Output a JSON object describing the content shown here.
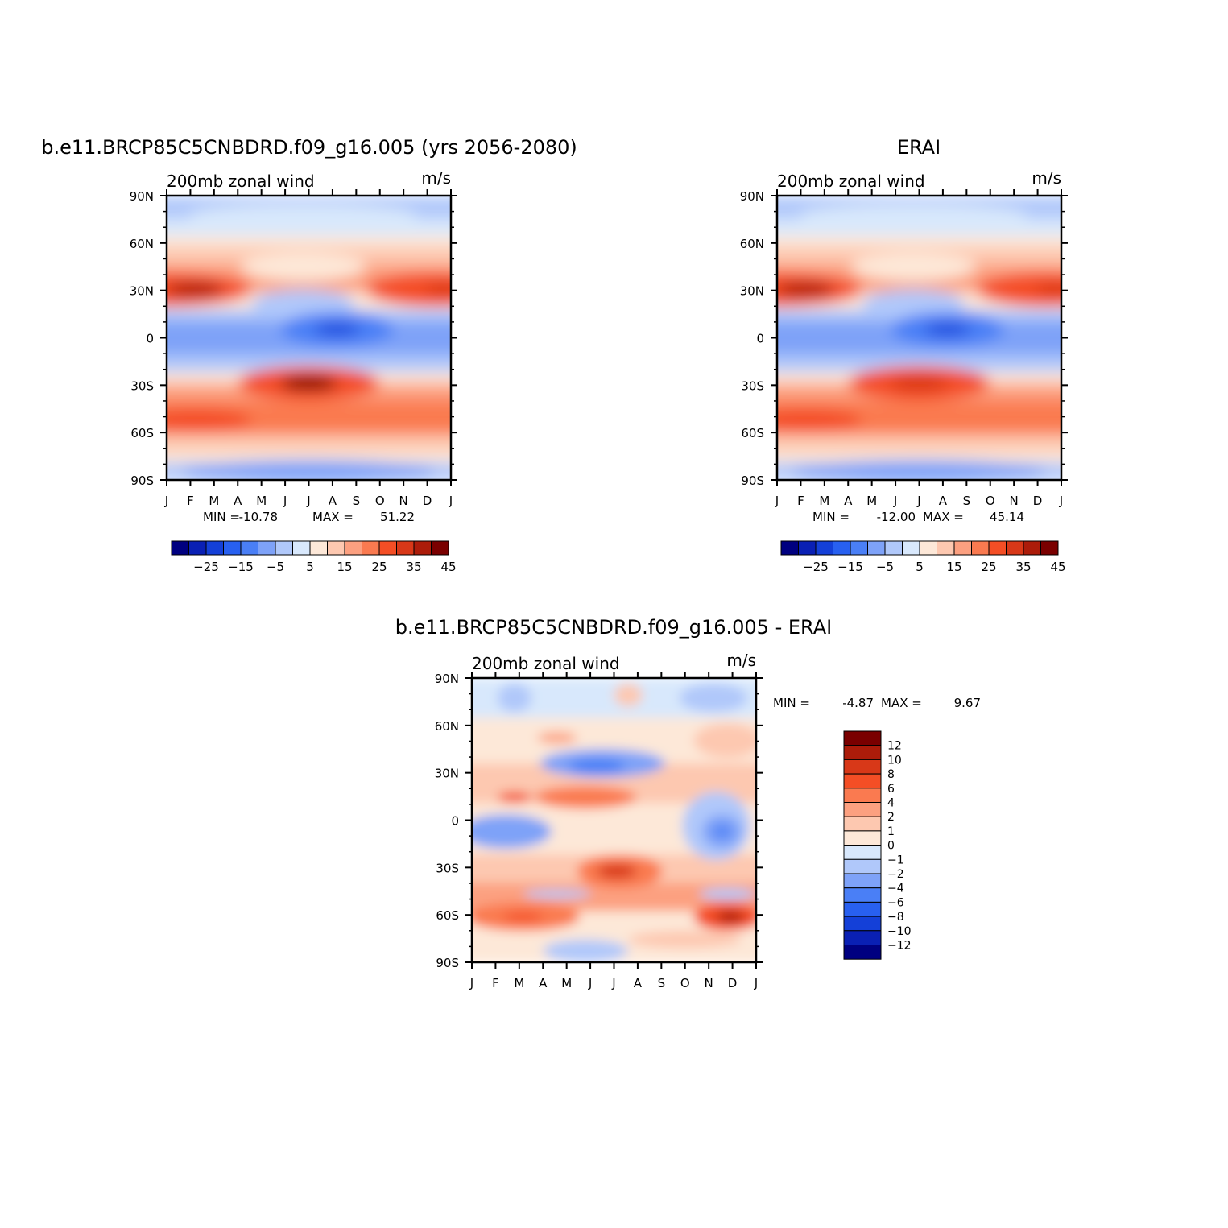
{
  "chart_data": [
    {
      "type": "heatmap",
      "title": "b.e11.BRCP85C5CNBDRD.f09_g16.005 (yrs 2056-2080)",
      "left_string": "200mb zonal wind",
      "right_string": "m/s",
      "x_ticks": [
        "J",
        "F",
        "M",
        "A",
        "M",
        "J",
        "J",
        "A",
        "S",
        "O",
        "N",
        "D",
        "J"
      ],
      "y_ticks": [
        "90N",
        "60N",
        "30N",
        "0",
        "30S",
        "60S",
        "90S"
      ],
      "min_label": "MIN =",
      "min_value": "-10.78",
      "max_label": "MAX =",
      "max_value": "51.22",
      "colorbar": {
        "orientation": "horizontal",
        "labels": [
          "-25",
          "-15",
          "-5",
          "5",
          "15",
          "25",
          "35",
          "45"
        ],
        "colors": [
          "#000080",
          "#0a20b4",
          "#1440d8",
          "#2860f0",
          "#4a7ff6",
          "#7ea2f8",
          "#b0c8fa",
          "#d8e8fc",
          "#fde8d8",
          "#fdc8b0",
          "#fca080",
          "#fa7a50",
          "#f44e25",
          "#d83818",
          "#ac1c0a",
          "#7a0000"
        ]
      }
    },
    {
      "type": "heatmap",
      "title": "ERAI",
      "left_string": "200mb zonal wind",
      "right_string": "m/s",
      "x_ticks": [
        "J",
        "F",
        "M",
        "A",
        "M",
        "J",
        "J",
        "A",
        "S",
        "O",
        "N",
        "D",
        "J"
      ],
      "y_ticks": [
        "90N",
        "60N",
        "30N",
        "0",
        "30S",
        "60S",
        "90S"
      ],
      "min_label": "MIN =",
      "min_value": "-12.00",
      "max_label": "MAX =",
      "max_value": "45.14",
      "colorbar": {
        "orientation": "horizontal",
        "labels": [
          "-25",
          "-15",
          "-5",
          "5",
          "15",
          "25",
          "35",
          "45"
        ],
        "colors": [
          "#000080",
          "#0a20b4",
          "#1440d8",
          "#2860f0",
          "#4a7ff6",
          "#7ea2f8",
          "#b0c8fa",
          "#d8e8fc",
          "#fde8d8",
          "#fdc8b0",
          "#fca080",
          "#fa7a50",
          "#f44e25",
          "#d83818",
          "#ac1c0a",
          "#7a0000"
        ]
      }
    },
    {
      "type": "heatmap",
      "title": "b.e11.BRCP85C5CNBDRD.f09_g16.005 - ERAI",
      "left_string": "200mb zonal wind",
      "right_string": "m/s",
      "x_ticks": [
        "J",
        "F",
        "M",
        "A",
        "M",
        "J",
        "J",
        "A",
        "S",
        "O",
        "N",
        "D",
        "J"
      ],
      "y_ticks": [
        "90N",
        "60N",
        "30N",
        "0",
        "30S",
        "60S",
        "90S"
      ],
      "min_label": "MIN =",
      "min_value": "-4.87",
      "max_label": "MAX =",
      "max_value": "9.67",
      "colorbar": {
        "orientation": "vertical",
        "labels": [
          "12",
          "10",
          "8",
          "6",
          "4",
          "2",
          "1",
          "0",
          "-1",
          "-2",
          "-4",
          "-6",
          "-8",
          "-10",
          "-12"
        ],
        "colors": [
          "#7a0000",
          "#ac1c0a",
          "#d83818",
          "#f44e25",
          "#fa7a50",
          "#fca080",
          "#fdc8b0",
          "#fde8d8",
          "#d8e8fc",
          "#b0c8fa",
          "#7ea2f8",
          "#4a7ff6",
          "#2860f0",
          "#1440d8",
          "#0a20b4",
          "#000080"
        ]
      }
    }
  ]
}
